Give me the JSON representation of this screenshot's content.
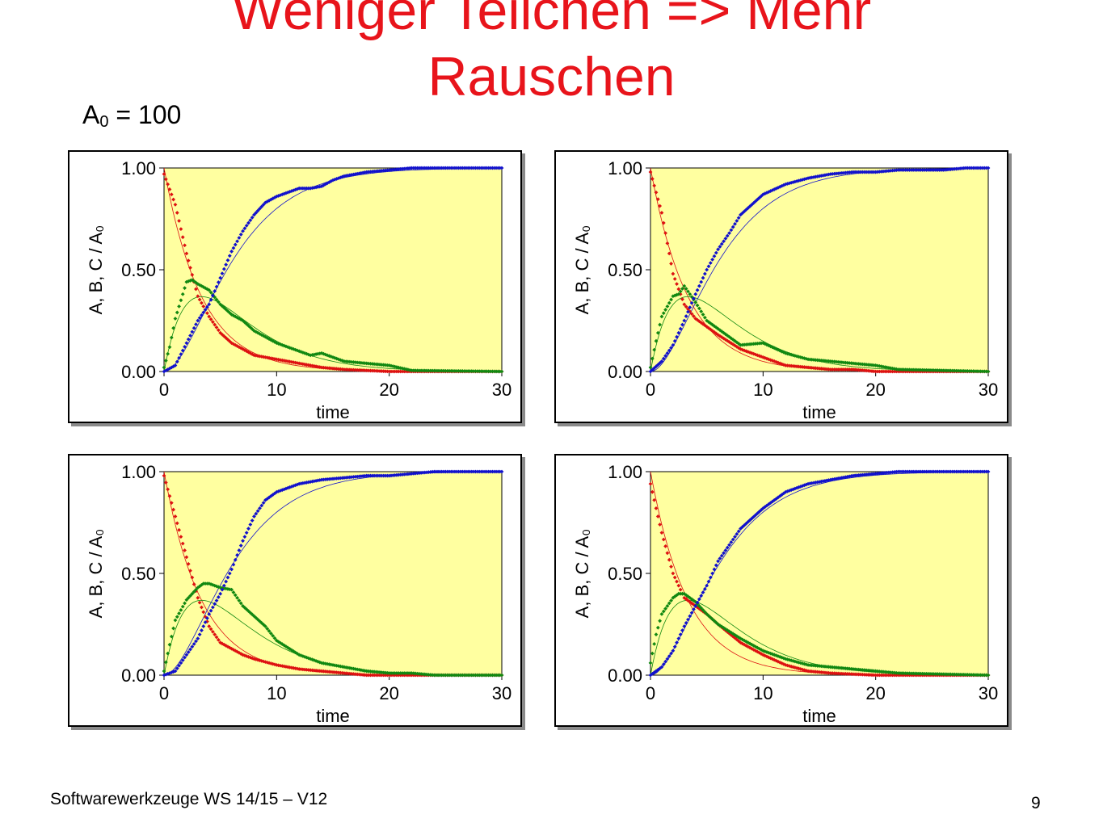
{
  "slide": {
    "title_line1": "Weniger Teilchen => Mehr",
    "title_line2": "Rauschen",
    "subtitle_main": "A",
    "subtitle_sub": "0",
    "subtitle_rest": " = 100",
    "footer": "Softwarewerkzeuge WS 14/15 –  V12",
    "page_number": "9"
  },
  "colors": {
    "title": "#e8141b",
    "plot_background": "#ffffa0",
    "A": "#dd1111",
    "B": "#118811",
    "C": "#1111cc"
  },
  "chart_data": [
    {
      "type": "scatter",
      "xlabel": "time",
      "ylabel": "A, B, C / A₀",
      "xlim": [
        0,
        30
      ],
      "ylim": [
        0,
        1
      ],
      "xticks": [
        "0",
        "10",
        "20",
        "30"
      ],
      "yticks": [
        "0.00",
        "0.50",
        "1.00"
      ],
      "grid": false,
      "series": [
        {
          "key": "A",
          "x": [
            0,
            1,
            2,
            3,
            4,
            5,
            6,
            7,
            8,
            10,
            12,
            14,
            16,
            18,
            20,
            30
          ],
          "values": [
            0.97,
            0.82,
            0.58,
            0.37,
            0.27,
            0.19,
            0.14,
            0.11,
            0.08,
            0.06,
            0.04,
            0.02,
            0.01,
            0.005,
            0,
            0
          ]
        },
        {
          "key": "B",
          "x": [
            0,
            0.5,
            1,
            2,
            2.5,
            3,
            4,
            5,
            6,
            7,
            8,
            10,
            12,
            13,
            14,
            16,
            18,
            20,
            22,
            30
          ],
          "values": [
            0.02,
            0.12,
            0.26,
            0.44,
            0.45,
            0.43,
            0.4,
            0.33,
            0.28,
            0.25,
            0.2,
            0.14,
            0.1,
            0.08,
            0.09,
            0.05,
            0.04,
            0.03,
            0.005,
            0
          ]
        },
        {
          "key": "C",
          "x": [
            0,
            1,
            2,
            3,
            4,
            5,
            6,
            7,
            8,
            9,
            10,
            12,
            13,
            14,
            15,
            16,
            18,
            20,
            22,
            30
          ],
          "values": [
            0,
            0.03,
            0.14,
            0.25,
            0.33,
            0.46,
            0.59,
            0.69,
            0.77,
            0.83,
            0.86,
            0.9,
            0.9,
            0.91,
            0.94,
            0.96,
            0.98,
            0.99,
            1,
            1
          ]
        }
      ]
    },
    {
      "type": "scatter",
      "xlabel": "time",
      "ylabel": "A, B, C / A₀",
      "xlim": [
        0,
        30
      ],
      "ylim": [
        0,
        1
      ],
      "xticks": [
        "0",
        "10",
        "20",
        "30"
      ],
      "yticks": [
        "0.00",
        "0.50",
        "1.00"
      ],
      "grid": false,
      "series": [
        {
          "key": "A",
          "x": [
            0,
            1,
            2,
            3,
            4,
            5,
            6,
            8,
            10,
            12,
            14,
            16,
            18,
            20,
            30
          ],
          "values": [
            0.98,
            0.78,
            0.48,
            0.33,
            0.26,
            0.22,
            0.18,
            0.11,
            0.07,
            0.03,
            0.02,
            0.01,
            0.01,
            0,
            0
          ]
        },
        {
          "key": "B",
          "x": [
            0,
            0.5,
            1,
            2,
            2.5,
            3,
            4,
            5,
            6,
            8,
            10,
            12,
            14,
            16,
            18,
            20,
            22,
            30
          ],
          "values": [
            0.02,
            0.15,
            0.27,
            0.37,
            0.38,
            0.42,
            0.34,
            0.25,
            0.21,
            0.13,
            0.14,
            0.09,
            0.06,
            0.05,
            0.04,
            0.03,
            0.01,
            0
          ]
        },
        {
          "key": "C",
          "x": [
            0,
            1,
            2,
            3,
            4,
            5,
            6,
            7,
            8,
            10,
            12,
            14,
            16,
            18,
            20,
            22,
            24,
            26,
            28,
            30
          ],
          "values": [
            0,
            0.05,
            0.13,
            0.25,
            0.38,
            0.5,
            0.6,
            0.68,
            0.77,
            0.87,
            0.92,
            0.95,
            0.97,
            0.98,
            0.98,
            0.99,
            0.99,
            0.99,
            1,
            1
          ]
        }
      ]
    },
    {
      "type": "scatter",
      "xlabel": "time",
      "ylabel": "A, B, C / A₀",
      "xlim": [
        0,
        30
      ],
      "ylim": [
        0,
        1
      ],
      "xticks": [
        "0",
        "10",
        "20",
        "30"
      ],
      "yticks": [
        "0.00",
        "0.50",
        "1.00"
      ],
      "grid": false,
      "series": [
        {
          "key": "A",
          "x": [
            0,
            1,
            2,
            3,
            4,
            5,
            6,
            7,
            8,
            10,
            12,
            14,
            16,
            18,
            20,
            30
          ],
          "values": [
            0.98,
            0.78,
            0.58,
            0.38,
            0.24,
            0.16,
            0.13,
            0.1,
            0.08,
            0.05,
            0.03,
            0.02,
            0.01,
            0,
            0,
            0
          ]
        },
        {
          "key": "B",
          "x": [
            0,
            0.5,
            1,
            2,
            3,
            3.5,
            4,
            5,
            6,
            7,
            8,
            9,
            10,
            12,
            14,
            16,
            18,
            20,
            22,
            24,
            30
          ],
          "values": [
            0.02,
            0.15,
            0.27,
            0.37,
            0.43,
            0.45,
            0.45,
            0.43,
            0.42,
            0.34,
            0.29,
            0.24,
            0.17,
            0.1,
            0.06,
            0.04,
            0.02,
            0.01,
            0.01,
            0,
            0
          ]
        },
        {
          "key": "C",
          "x": [
            0,
            1,
            2,
            3,
            4,
            5,
            6,
            7,
            8,
            9,
            10,
            12,
            14,
            16,
            18,
            20,
            22,
            24,
            26,
            30
          ],
          "values": [
            0,
            0.02,
            0.1,
            0.18,
            0.3,
            0.4,
            0.52,
            0.66,
            0.78,
            0.86,
            0.9,
            0.94,
            0.96,
            0.97,
            0.98,
            0.98,
            0.99,
            1,
            1,
            1
          ]
        }
      ]
    },
    {
      "type": "scatter",
      "xlabel": "time",
      "ylabel": "A, B, C / A₀",
      "xlim": [
        0,
        30
      ],
      "ylim": [
        0,
        1
      ],
      "xticks": [
        "0",
        "10",
        "20",
        "30"
      ],
      "yticks": [
        "0.00",
        "0.50",
        "1.00"
      ],
      "grid": false,
      "series": [
        {
          "key": "A",
          "x": [
            0,
            1,
            2,
            3,
            4,
            5,
            6,
            8,
            10,
            12,
            14,
            16,
            18,
            20,
            22,
            30
          ],
          "values": [
            0.94,
            0.7,
            0.5,
            0.38,
            0.34,
            0.3,
            0.25,
            0.16,
            0.1,
            0.05,
            0.02,
            0.01,
            0.005,
            0,
            0,
            0
          ]
        },
        {
          "key": "B",
          "x": [
            0,
            0.5,
            1,
            2,
            2.5,
            3,
            4,
            5,
            6,
            8,
            10,
            12,
            14,
            16,
            18,
            20,
            22,
            30
          ],
          "values": [
            0.06,
            0.2,
            0.3,
            0.38,
            0.4,
            0.4,
            0.36,
            0.3,
            0.25,
            0.18,
            0.12,
            0.08,
            0.05,
            0.04,
            0.03,
            0.02,
            0.01,
            0
          ]
        },
        {
          "key": "C",
          "x": [
            0,
            1,
            2,
            3,
            4,
            5,
            6,
            7,
            8,
            10,
            12,
            14,
            16,
            18,
            20,
            22,
            24,
            26,
            28,
            30
          ],
          "values": [
            0,
            0.04,
            0.12,
            0.24,
            0.34,
            0.44,
            0.56,
            0.64,
            0.72,
            0.82,
            0.9,
            0.94,
            0.96,
            0.98,
            0.99,
            1,
            1,
            1,
            1,
            1
          ]
        }
      ]
    }
  ]
}
